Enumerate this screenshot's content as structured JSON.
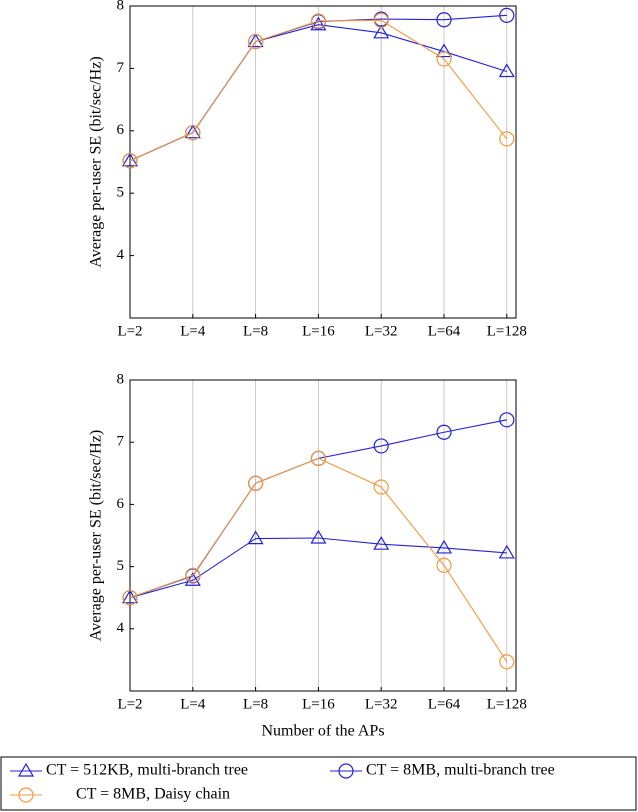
{
  "chart_data": [
    {
      "type": "line",
      "y_label": "Average per-user SE (bit/sec/Hz)",
      "categories": [
        "L=2",
        "L=4",
        "L=8",
        "L=16",
        "L=32",
        "L=64",
        "L=128"
      ],
      "ylim": [
        3,
        8
      ],
      "yticks": [
        4,
        5,
        6,
        7,
        8
      ],
      "grid": "x",
      "series": [
        {
          "name": "CT = 512KB, multi-branch tree",
          "color": "#2323d8",
          "marker": "triangle",
          "values": [
            5.52,
            5.97,
            7.43,
            7.7,
            7.57,
            7.27,
            6.95
          ]
        },
        {
          "name": "CT = 8MB, multi-branch tree",
          "color": "#2323d8",
          "marker": "circle",
          "values": [
            5.52,
            5.97,
            7.43,
            7.75,
            7.79,
            7.78,
            7.85
          ]
        },
        {
          "name": "CT = 8MB, Daisy chain",
          "color": "#f29a3c",
          "marker": "circle",
          "values": [
            5.52,
            5.97,
            7.43,
            7.76,
            7.77,
            7.15,
            5.87
          ]
        }
      ]
    },
    {
      "type": "line",
      "y_label": "Average per-user SE (bit/sec/Hz)",
      "x_label": "Number of the APs",
      "categories": [
        "L=2",
        "L=4",
        "L=8",
        "L=16",
        "L=32",
        "L=64",
        "L=128"
      ],
      "ylim": [
        3,
        8
      ],
      "yticks": [
        4,
        5,
        6,
        7,
        8
      ],
      "grid": "x",
      "series": [
        {
          "name": "CT = 512KB, multi-branch tree",
          "color": "#2323d8",
          "marker": "triangle",
          "values": [
            4.5,
            4.78,
            5.45,
            5.46,
            5.36,
            5.3,
            5.22
          ]
        },
        {
          "name": "CT = 8MB, multi-branch tree",
          "color": "#2323d8",
          "marker": "circle",
          "values": [
            4.5,
            4.85,
            6.34,
            6.74,
            6.94,
            7.16,
            7.36
          ]
        },
        {
          "name": "CT = 8MB, Daisy chain",
          "color": "#f29a3c",
          "marker": "circle",
          "values": [
            4.5,
            4.86,
            6.34,
            6.74,
            6.28,
            5.02,
            3.47
          ]
        }
      ]
    }
  ]
}
